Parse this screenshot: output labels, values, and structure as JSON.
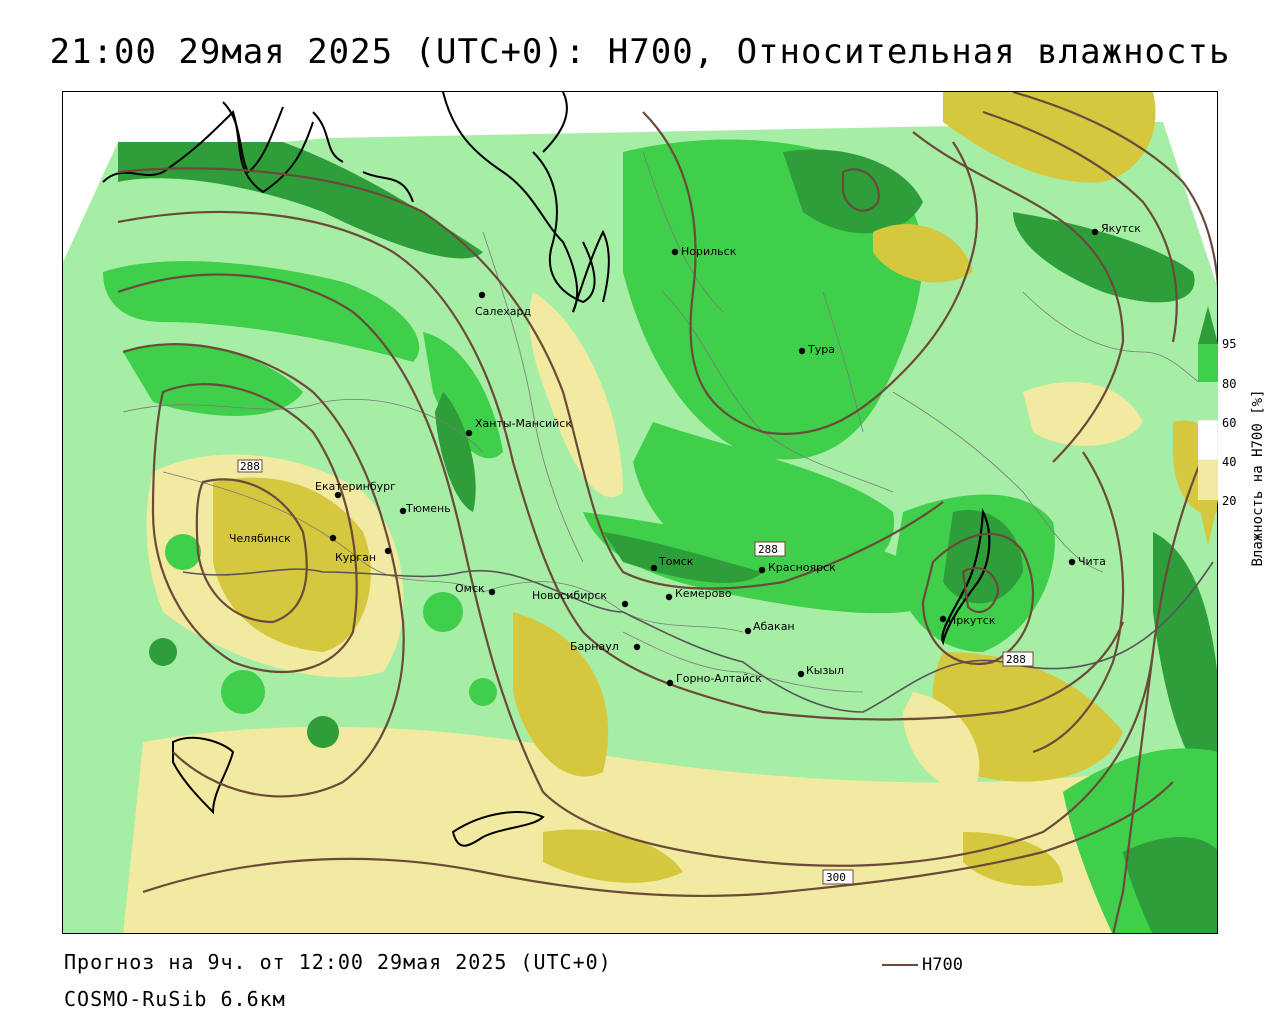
{
  "title": "21:00 29мая 2025 (UTC+0): H700, Относительная влажность",
  "forecast_info": "Прогноз на 9ч. от 12:00 29мая 2025 (UTC+0)",
  "model": "COSMO-RuSib 6.6км",
  "legend": {
    "label": "H700",
    "color": "#6b4a3a"
  },
  "colorbar": {
    "title": "Влажность на H700 [%]",
    "ticks": [
      "95",
      "80",
      "60",
      "40",
      "20"
    ],
    "colors": {
      "very_wet": "#2e9e3a",
      "wet": "#3fcf4a",
      "moist": "#a6eda6",
      "neutral": "#ffffff",
      "dry": "#f1eaa0",
      "very_dry": "#d6c83e"
    }
  },
  "cities": [
    {
      "name": "Норильск"
    },
    {
      "name": "Якутск"
    },
    {
      "name": "Салехард"
    },
    {
      "name": "Тура"
    },
    {
      "name": "Ханты-Мансийск"
    },
    {
      "name": "Екатеринбург"
    },
    {
      "name": "Тюмень"
    },
    {
      "name": "Челябинск"
    },
    {
      "name": "Курган"
    },
    {
      "name": "Омск"
    },
    {
      "name": "Новосибирск"
    },
    {
      "name": "Томск"
    },
    {
      "name": "Кемерово"
    },
    {
      "name": "Красноярск"
    },
    {
      "name": "Абакан"
    },
    {
      "name": "Барнаул"
    },
    {
      "name": "Горно-Алтайск"
    },
    {
      "name": "Кызыл"
    },
    {
      "name": "Иркутск"
    },
    {
      "name": "Чита"
    }
  ],
  "isoline_labels": [
    "288",
    "288",
    "300",
    "288"
  ]
}
